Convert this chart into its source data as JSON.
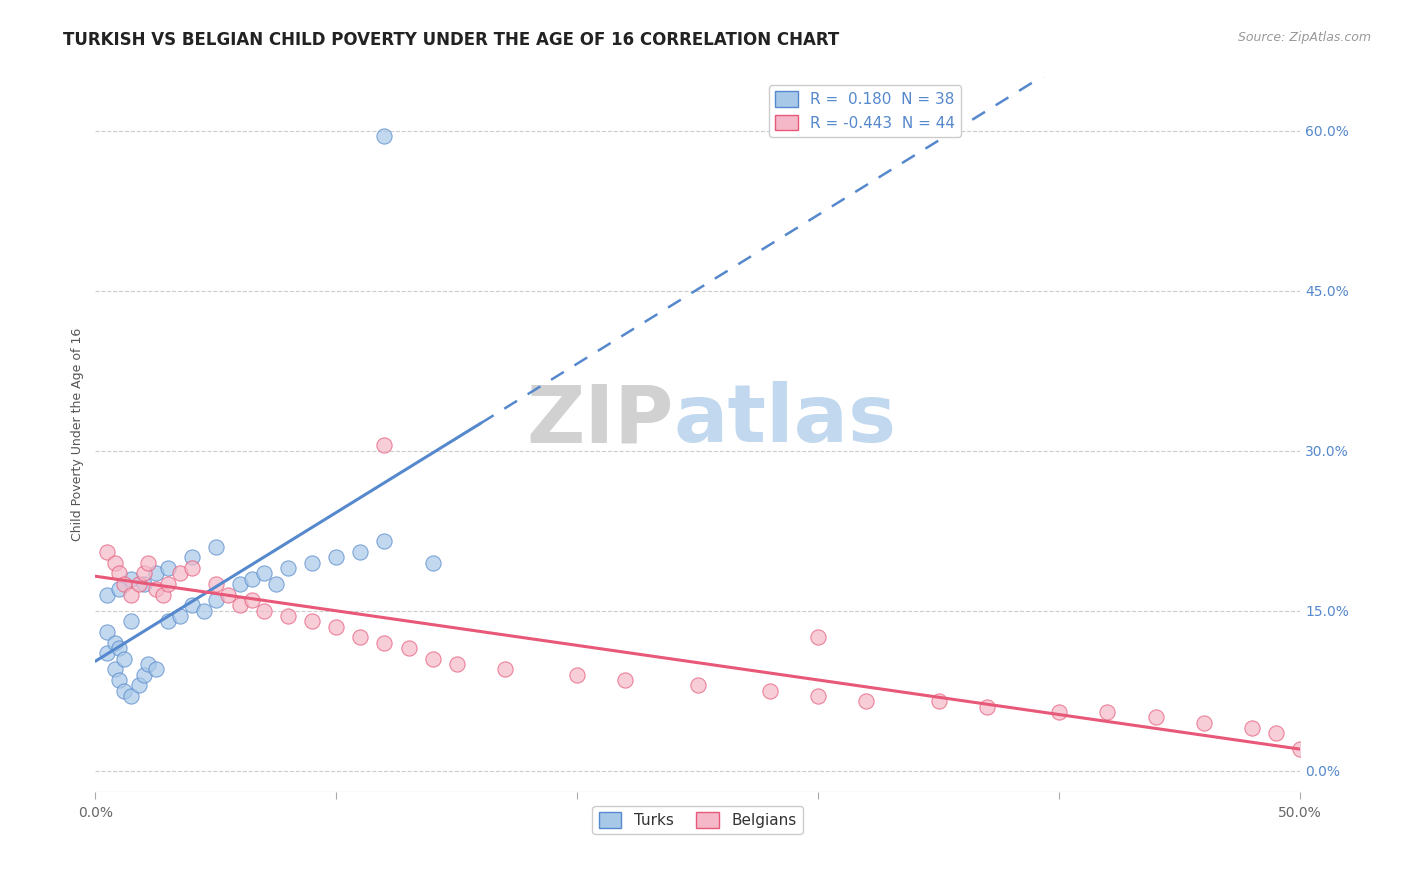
{
  "title": "TURKISH VS BELGIAN CHILD POVERTY UNDER THE AGE OF 16 CORRELATION CHART",
  "source": "Source: ZipAtlas.com",
  "ylabel": "Child Poverty Under the Age of 16",
  "xlim": [
    0.0,
    0.5
  ],
  "ylim": [
    -0.02,
    0.65
  ],
  "xticks": [
    0.0,
    0.1,
    0.2,
    0.3,
    0.4,
    0.5
  ],
  "xtick_labels": [
    "0.0%",
    "",
    "",
    "",
    "",
    "50.0%"
  ],
  "ytick_labels_right": [
    "60.0%",
    "45.0%",
    "30.0%",
    "15.0%",
    "0.0%"
  ],
  "yticks_right": [
    0.6,
    0.45,
    0.3,
    0.15,
    0.0
  ],
  "legend_blue_label": "R =  0.180  N = 38",
  "legend_pink_label": "R = -0.443  N = 44",
  "blue_color": "#a8c8e8",
  "pink_color": "#f4b8c8",
  "trendline_blue": "#5588cc",
  "trendline_pink": "#e85878",
  "watermark_zip": "ZIP",
  "watermark_atlas": "atlas",
  "blue_scatter_x": [
    0.005,
    0.008,
    0.01,
    0.012,
    0.015,
    0.018,
    0.02,
    0.022,
    0.025,
    0.005,
    0.008,
    0.01,
    0.012,
    0.015,
    0.03,
    0.035,
    0.04,
    0.045,
    0.05,
    0.06,
    0.065,
    0.07,
    0.075,
    0.08,
    0.09,
    0.1,
    0.11,
    0.12,
    0.005,
    0.01,
    0.015,
    0.02,
    0.025,
    0.03,
    0.04,
    0.05,
    0.12,
    0.14
  ],
  "blue_scatter_y": [
    0.11,
    0.095,
    0.085,
    0.075,
    0.07,
    0.08,
    0.09,
    0.1,
    0.095,
    0.13,
    0.12,
    0.115,
    0.105,
    0.14,
    0.14,
    0.145,
    0.155,
    0.15,
    0.16,
    0.175,
    0.18,
    0.185,
    0.175,
    0.19,
    0.195,
    0.2,
    0.205,
    0.215,
    0.165,
    0.17,
    0.18,
    0.175,
    0.185,
    0.19,
    0.2,
    0.21,
    0.595,
    0.195
  ],
  "pink_scatter_x": [
    0.005,
    0.008,
    0.01,
    0.012,
    0.015,
    0.018,
    0.02,
    0.022,
    0.025,
    0.028,
    0.03,
    0.035,
    0.04,
    0.05,
    0.055,
    0.06,
    0.065,
    0.07,
    0.08,
    0.09,
    0.1,
    0.11,
    0.12,
    0.13,
    0.14,
    0.15,
    0.17,
    0.2,
    0.22,
    0.25,
    0.28,
    0.3,
    0.32,
    0.35,
    0.37,
    0.4,
    0.42,
    0.44,
    0.46,
    0.48,
    0.49,
    0.5,
    0.12,
    0.3
  ],
  "pink_scatter_y": [
    0.205,
    0.195,
    0.185,
    0.175,
    0.165,
    0.175,
    0.185,
    0.195,
    0.17,
    0.165,
    0.175,
    0.185,
    0.19,
    0.175,
    0.165,
    0.155,
    0.16,
    0.15,
    0.145,
    0.14,
    0.135,
    0.125,
    0.12,
    0.115,
    0.105,
    0.1,
    0.095,
    0.09,
    0.085,
    0.08,
    0.075,
    0.07,
    0.065,
    0.065,
    0.06,
    0.055,
    0.055,
    0.05,
    0.045,
    0.04,
    0.035,
    0.02,
    0.305,
    0.125
  ],
  "title_fontsize": 12,
  "axis_label_fontsize": 9,
  "tick_fontsize": 10,
  "legend_fontsize": 11,
  "background_color": "#ffffff",
  "grid_color": "#cccccc"
}
